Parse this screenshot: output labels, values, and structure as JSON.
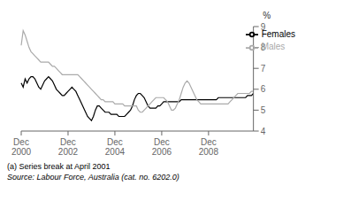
{
  "chart_data": {
    "type": "line",
    "ylabel": "%",
    "annotations": [
      "(a) Series break at April 2001",
      "Source: Labour Force, Australia (cat. no. 6202.0)"
    ],
    "categories": [
      "Dec\n2000",
      null,
      null,
      null,
      null,
      null,
      null,
      null,
      null,
      null,
      null,
      null,
      null,
      null,
      null,
      null,
      null,
      null,
      null,
      null,
      null,
      null,
      null,
      null,
      "Dec\n2002",
      null,
      null,
      null,
      null,
      null,
      null,
      null,
      null,
      null,
      null,
      null,
      null,
      null,
      null,
      null,
      null,
      null,
      null,
      null,
      null,
      null,
      null,
      null,
      "Dec\n2004",
      null,
      null,
      null,
      null,
      null,
      null,
      null,
      null,
      null,
      null,
      null,
      null,
      null,
      null,
      null,
      null,
      null,
      null,
      null,
      null,
      null,
      null,
      null,
      "Dec\n2006",
      null,
      null,
      null,
      null,
      null,
      null,
      null,
      null,
      null,
      null,
      null,
      null,
      null,
      null,
      null,
      null,
      null,
      null,
      null,
      null,
      null,
      null,
      null,
      "Dec\n2008",
      null,
      null,
      null,
      null,
      null,
      null,
      null,
      null,
      null,
      null,
      null,
      null,
      null,
      null,
      null,
      null,
      null,
      null,
      null,
      null,
      null,
      null,
      null
    ],
    "series": [
      {
        "name": "Females",
        "color": "#000000",
        "values": [
          6.3,
          6.1,
          6.5,
          6.3,
          6.5,
          6.6,
          6.6,
          6.5,
          6.3,
          6.1,
          6.0,
          6.2,
          6.4,
          6.5,
          6.6,
          6.5,
          6.4,
          6.2,
          6.0,
          5.9,
          5.8,
          5.7,
          5.7,
          5.8,
          5.9,
          6.0,
          6.1,
          6.0,
          5.9,
          5.7,
          5.5,
          5.3,
          5.1,
          4.9,
          4.7,
          4.6,
          4.5,
          4.7,
          5.0,
          5.2,
          5.2,
          5.1,
          5.0,
          4.9,
          4.9,
          4.9,
          4.8,
          4.8,
          4.8,
          4.8,
          4.7,
          4.7,
          4.7,
          4.7,
          4.8,
          4.9,
          5.0,
          5.2,
          5.5,
          5.7,
          5.8,
          5.8,
          5.7,
          5.6,
          5.4,
          5.2,
          5.1,
          5.1,
          5.1,
          5.1,
          5.2,
          5.2,
          5.3,
          5.4,
          5.4,
          5.4,
          5.4,
          5.4,
          5.4,
          5.4,
          5.4,
          5.4,
          5.5,
          5.5,
          5.5,
          5.5,
          5.5,
          5.5,
          5.5,
          5.5,
          5.5,
          5.5,
          5.5,
          5.5,
          5.5,
          5.5,
          5.5,
          5.5,
          5.5,
          5.5,
          5.5,
          5.6,
          5.6,
          5.6,
          5.6,
          5.6,
          5.6,
          5.6,
          5.6,
          5.6,
          5.6,
          5.6,
          5.6,
          5.6,
          5.6,
          5.6,
          5.7,
          5.7,
          5.7,
          5.8
        ]
      },
      {
        "name": "Males",
        "color": "#aaaaaa",
        "values": [
          8.1,
          8.8,
          8.6,
          8.3,
          8.0,
          7.8,
          7.7,
          7.6,
          7.5,
          7.4,
          7.3,
          7.3,
          7.3,
          7.3,
          7.3,
          7.2,
          7.1,
          7.1,
          7.0,
          6.9,
          6.8,
          6.7,
          6.7,
          6.7,
          6.7,
          6.7,
          6.7,
          6.7,
          6.7,
          6.7,
          6.6,
          6.5,
          6.4,
          6.3,
          6.2,
          6.1,
          6.0,
          5.9,
          5.8,
          5.7,
          5.6,
          5.5,
          5.5,
          5.4,
          5.4,
          5.4,
          5.4,
          5.4,
          5.3,
          5.3,
          5.3,
          5.3,
          5.3,
          5.2,
          5.2,
          5.2,
          5.2,
          5.2,
          5.2,
          5.2,
          5.0,
          4.9,
          4.9,
          5.0,
          5.1,
          5.2,
          5.3,
          5.4,
          5.5,
          5.6,
          5.6,
          5.6,
          5.6,
          5.6,
          5.5,
          5.4,
          5.2,
          5.0,
          5.0,
          5.1,
          5.3,
          5.5,
          5.8,
          6.1,
          6.3,
          6.4,
          6.3,
          6.1,
          5.9,
          5.7,
          5.5,
          5.4,
          5.3,
          5.3,
          5.3,
          5.3,
          5.3,
          5.3,
          5.3,
          5.3,
          5.3,
          5.3,
          5.3,
          5.3,
          5.3,
          5.3,
          5.3,
          5.4,
          5.5,
          5.6,
          5.7,
          5.8,
          5.8,
          5.8,
          5.8,
          5.8,
          5.8,
          5.8,
          5.9,
          5.9
        ]
      }
    ],
    "ylim": [
      4,
      9
    ],
    "yticks": [
      4,
      5,
      6,
      7,
      8,
      9
    ],
    "legend": "upper right",
    "grid": false
  }
}
